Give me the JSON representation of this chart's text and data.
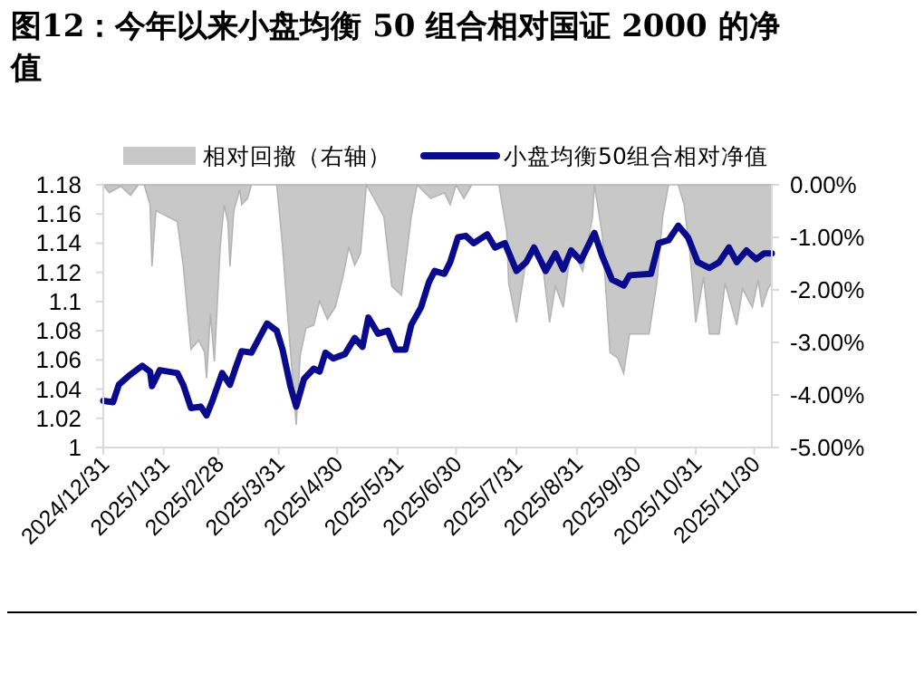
{
  "chart_data": {
    "type": "line",
    "title": "图12：今年以来小盘均衡 50 组合相对国证 2000 的净值",
    "xlim": [
      "2024-12-31",
      "2025-12-09"
    ],
    "xticks": [
      {
        "value": "2024-12-31",
        "label": "2024/12/31"
      },
      {
        "value": "2025-01-31",
        "label": "2025/1/31"
      },
      {
        "value": "2025-02-28",
        "label": "2025/2/28"
      },
      {
        "value": "2025-03-31",
        "label": "2025/3/31"
      },
      {
        "value": "2025-04-30",
        "label": "2025/4/30"
      },
      {
        "value": "2025-05-31",
        "label": "2025/5/31"
      },
      {
        "value": "2025-06-30",
        "label": "2025/6/30"
      },
      {
        "value": "2025-07-31",
        "label": "2025/7/31"
      },
      {
        "value": "2025-08-31",
        "label": "2025/8/31"
      },
      {
        "value": "2025-09-30",
        "label": "2025/9/30"
      },
      {
        "value": "2025-10-31",
        "label": "2025/10/31"
      },
      {
        "value": "2025-11-30",
        "label": "2025/11/30"
      }
    ],
    "ylim": [
      1,
      1.18
    ],
    "yticks": [
      1,
      1.02,
      1.04,
      1.06,
      1.08,
      1.1,
      1.12,
      1.14,
      1.16,
      1.18
    ],
    "y2lim": [
      -5,
      0
    ],
    "y2ticks": [
      {
        "value": -5,
        "label": "-5.00%"
      },
      {
        "value": -4,
        "label": "-4.00%"
      },
      {
        "value": -3,
        "label": "-3.00%"
      },
      {
        "value": -2,
        "label": "-2.00%"
      },
      {
        "value": -1,
        "label": "-1.00%"
      },
      {
        "value": 0,
        "label": "0.00%"
      }
    ],
    "legend": "top",
    "grid": false,
    "series": [
      {
        "name": "相对回撤（右轴）",
        "type": "area",
        "axis": "y2",
        "color": "#c8c8c8",
        "x": [
          "2024-12-31",
          "2025-01-03",
          "2025-01-09",
          "2025-01-14",
          "2025-01-18",
          "2025-01-21",
          "2025-01-24",
          "2025-01-25",
          "2025-01-27",
          "2025-01-30",
          "2025-02-07",
          "2025-02-10",
          "2025-02-14",
          "2025-02-18",
          "2025-02-21",
          "2025-02-22",
          "2025-02-24",
          "2025-02-26",
          "2025-03-01",
          "2025-03-03",
          "2025-03-05",
          "2025-03-06",
          "2025-03-08",
          "2025-03-11",
          "2025-03-12",
          "2025-03-15",
          "2025-03-17",
          "2025-03-24",
          "2025-03-30",
          "2025-04-02",
          "2025-04-05",
          "2025-04-09",
          "2025-04-11",
          "2025-04-14",
          "2025-04-18",
          "2025-04-21",
          "2025-04-25",
          "2025-04-29",
          "2025-05-03",
          "2025-05-06",
          "2025-05-09",
          "2025-05-12",
          "2025-05-15",
          "2025-05-19",
          "2025-05-24",
          "2025-05-28",
          "2025-06-02",
          "2025-06-07",
          "2025-06-10",
          "2025-06-17",
          "2025-06-24",
          "2025-06-27",
          "2025-06-30",
          "2025-07-04",
          "2025-07-08",
          "2025-07-16",
          "2025-07-22",
          "2025-07-26",
          "2025-07-27",
          "2025-07-31",
          "2025-08-05",
          "2025-08-09",
          "2025-08-14",
          "2025-08-17",
          "2025-08-20",
          "2025-08-24",
          "2025-08-28",
          "2025-09-03",
          "2025-09-08",
          "2025-09-09",
          "2025-09-13",
          "2025-09-17",
          "2025-09-21",
          "2025-09-24",
          "2025-09-27",
          "2025-10-07",
          "2025-10-11",
          "2025-10-14",
          "2025-10-17",
          "2025-10-22",
          "2025-10-25",
          "2025-10-28",
          "2025-10-31",
          "2025-11-04",
          "2025-11-07",
          "2025-11-12",
          "2025-11-15",
          "2025-11-21",
          "2025-11-24",
          "2025-11-29",
          "2025-12-02",
          "2025-12-04",
          "2025-12-07",
          "2025-12-09"
        ],
        "values": [
          0,
          -0.15,
          -0.03,
          -0.2,
          0,
          0,
          -0.38,
          -1.55,
          -0.49,
          -0.55,
          -0.7,
          -1.53,
          -3.13,
          -2.96,
          -3.19,
          -3.68,
          -2.44,
          -3.36,
          -1.18,
          -0.38,
          -0.72,
          -1.55,
          -0.49,
          -0.09,
          -0.38,
          -0.26,
          0,
          0,
          0,
          -1.18,
          -2.67,
          -4.57,
          -3.25,
          -2.73,
          -2.67,
          -2.21,
          -2.56,
          -2.33,
          -1.75,
          -1.18,
          -1.53,
          -1.3,
          0,
          -0.26,
          -0.61,
          -1.93,
          -2.1,
          -0.61,
          0,
          -0.26,
          -0.15,
          -0.38,
          0,
          -0.26,
          0,
          0,
          0,
          -0.89,
          -1.87,
          -2.62,
          -1.41,
          -1.18,
          -1.7,
          -2.62,
          -1.93,
          -2.33,
          -1.18,
          -1.64,
          -0.61,
          0,
          -0.95,
          -3.19,
          -3.3,
          -3.59,
          -2.84,
          -2.84,
          -1.87,
          -0.61,
          0,
          0,
          -0.38,
          -1.3,
          -2.62,
          -1.75,
          -2.84,
          -2.84,
          -1.87,
          -2.67,
          -1.98,
          -2.33,
          -1.81,
          -2.33,
          -1.98,
          -1.87
        ]
      },
      {
        "name": "小盘均衡50组合相对净值",
        "type": "line",
        "color": "#0a0a8c",
        "x": [
          "2024-12-31",
          "2025-01-05",
          "2025-01-08",
          "2025-01-13",
          "2025-01-20",
          "2025-01-24",
          "2025-01-25",
          "2025-01-29",
          "2025-02-07",
          "2025-02-10",
          "2025-02-14",
          "2025-02-19",
          "2025-02-22",
          "2025-02-25",
          "2025-03-02",
          "2025-03-06",
          "2025-03-09",
          "2025-03-12",
          "2025-03-17",
          "2025-03-21",
          "2025-03-25",
          "2025-03-30",
          "2025-04-02",
          "2025-04-06",
          "2025-04-09",
          "2025-04-13",
          "2025-04-18",
          "2025-04-21",
          "2025-04-24",
          "2025-04-28",
          "2025-05-04",
          "2025-05-09",
          "2025-05-13",
          "2025-05-16",
          "2025-05-21",
          "2025-05-26",
          "2025-05-30",
          "2025-06-04",
          "2025-06-07",
          "2025-06-12",
          "2025-06-16",
          "2025-06-19",
          "2025-06-24",
          "2025-06-27",
          "2025-07-01",
          "2025-07-05",
          "2025-07-09",
          "2025-07-16",
          "2025-07-20",
          "2025-07-25",
          "2025-07-31",
          "2025-08-05",
          "2025-08-09",
          "2025-08-15",
          "2025-08-20",
          "2025-08-24",
          "2025-08-28",
          "2025-09-02",
          "2025-09-09",
          "2025-09-13",
          "2025-09-18",
          "2025-09-24",
          "2025-09-27",
          "2025-10-08",
          "2025-10-12",
          "2025-10-17",
          "2025-10-22",
          "2025-10-27",
          "2025-11-01",
          "2025-11-07",
          "2025-11-12",
          "2025-11-17",
          "2025-11-21",
          "2025-11-26",
          "2025-12-01",
          "2025-12-05",
          "2025-12-09"
        ],
        "values": [
          1.032,
          1.031,
          1.043,
          1.049,
          1.056,
          1.052,
          1.042,
          1.053,
          1.051,
          1.043,
          1.027,
          1.028,
          1.022,
          1.032,
          1.051,
          1.043,
          1.055,
          1.066,
          1.065,
          1.075,
          1.085,
          1.08,
          1.067,
          1.042,
          1.028,
          1.047,
          1.054,
          1.052,
          1.065,
          1.061,
          1.064,
          1.075,
          1.069,
          1.089,
          1.078,
          1.08,
          1.067,
          1.067,
          1.084,
          1.096,
          1.113,
          1.121,
          1.119,
          1.127,
          1.144,
          1.145,
          1.14,
          1.146,
          1.137,
          1.14,
          1.121,
          1.127,
          1.137,
          1.121,
          1.133,
          1.122,
          1.135,
          1.128,
          1.147,
          1.131,
          1.115,
          1.111,
          1.118,
          1.119,
          1.14,
          1.142,
          1.152,
          1.144,
          1.127,
          1.123,
          1.127,
          1.137,
          1.127,
          1.135,
          1.129,
          1.133,
          1.133
        ]
      }
    ]
  }
}
